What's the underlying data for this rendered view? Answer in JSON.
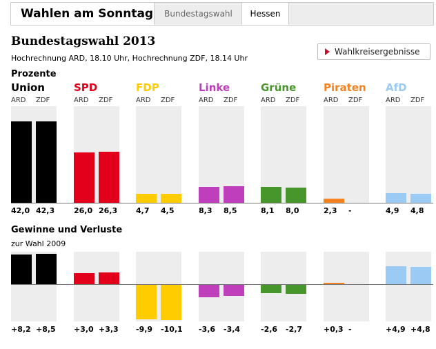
{
  "tabs": {
    "main_title": "Wahlen am Sonntag",
    "items": [
      {
        "label": "Bundestagswahl"
      },
      {
        "label": "Hessen"
      }
    ]
  },
  "header": {
    "title": "Bundestagswahl 2013",
    "subtitle": "Hochrechnung ARD, 18.10 Uhr, Hochrechnung ZDF, 18.14 Uhr",
    "button_label": "Wahlkreisergebnisse"
  },
  "chart_data": [
    {
      "type": "bar",
      "title": "Prozente",
      "categories": [
        "Union",
        "SPD",
        "FDP",
        "Linke",
        "Grüne",
        "Piraten",
        "AfD"
      ],
      "series": [
        {
          "name": "ARD",
          "values": [
            42.0,
            26.0,
            4.7,
            8.3,
            8.1,
            2.3,
            4.9
          ],
          "labels": [
            "42,0",
            "26,0",
            "4,7",
            "8,3",
            "8,1",
            "2,3",
            "4,9"
          ]
        },
        {
          "name": "ZDF",
          "values": [
            42.3,
            26.3,
            4.5,
            8.5,
            8.0,
            null,
            4.8
          ],
          "labels": [
            "42,3",
            "26,3",
            "4,5",
            "8,5",
            "8,0",
            "-",
            "4,8"
          ]
        }
      ],
      "colors": [
        "#000000",
        "#e2001a",
        "#ffcc00",
        "#be3ebb",
        "#46962b",
        "#f58220",
        "#9bcbf4"
      ],
      "ylim": [
        0,
        50
      ]
    },
    {
      "type": "bar",
      "title": "Gewinne und Verluste",
      "subtitle": "zur Wahl 2009",
      "categories": [
        "Union",
        "SPD",
        "FDP",
        "Linke",
        "Grüne",
        "Piraten",
        "AfD"
      ],
      "series": [
        {
          "name": "ARD",
          "values": [
            8.2,
            3.0,
            -9.9,
            -3.6,
            -2.6,
            0.3,
            4.9
          ],
          "labels": [
            "+8,2",
            "+3,0",
            "-9,9",
            "-3,6",
            "-2,6",
            "+0,3",
            "+4,9"
          ]
        },
        {
          "name": "ZDF",
          "values": [
            8.5,
            3.3,
            -10.1,
            -3.4,
            -2.7,
            null,
            4.8
          ],
          "labels": [
            "+8,5",
            "+3,3",
            "-10,1",
            "-3,4",
            "-2,7",
            "-",
            "+4,8"
          ]
        }
      ],
      "colors": [
        "#000000",
        "#e2001a",
        "#ffcc00",
        "#be3ebb",
        "#46962b",
        "#f58220",
        "#9bcbf4"
      ],
      "ylim": [
        -10.5,
        9
      ]
    }
  ]
}
